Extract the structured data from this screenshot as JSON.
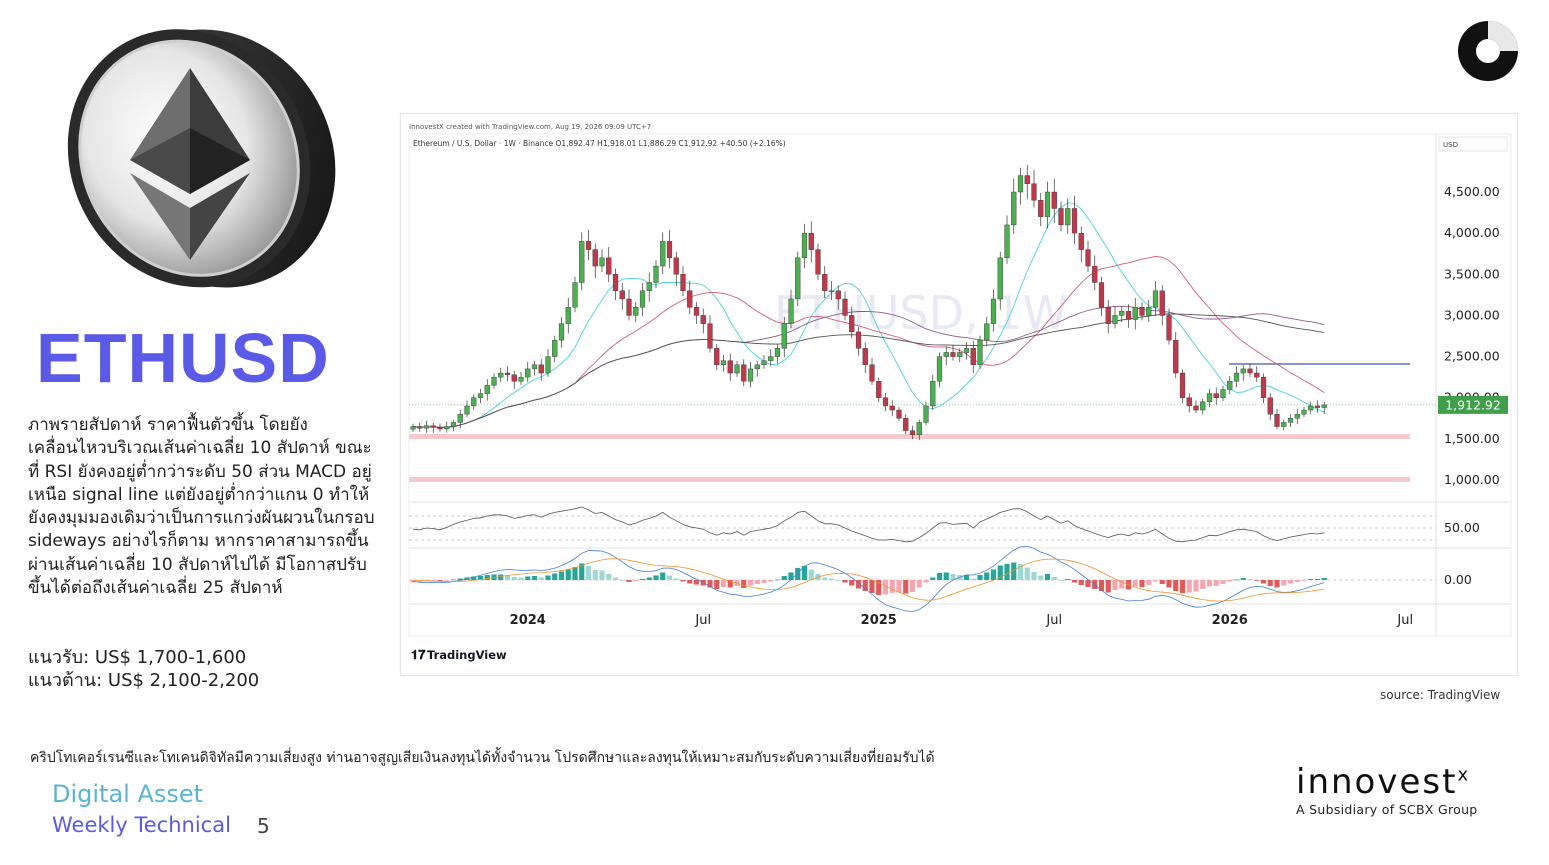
{
  "ticker": "ETHUSD",
  "analysis": "ภาพรายสัปดาห์ ราคาฟื้นตัวขึ้น โดยยังเคลื่อนไหวบริเวณเส้นค่าเฉลี่ย 10 สัปดาห์ ขณะที่ RSI ยังคงอยู่ต่ำกว่าระดับ 50 ส่วน MACD อยู่เหนือ signal line แต่ยังอยู่ต่ำกว่าแกน 0 ทำให้ยังคงมุมมองเดิมว่าเป็นการแกว่งผันผวนในกรอบ sideways อย่างไรก็ตาม หากราคาสามารถขึ้นผ่านเส้นค่าเฉลี่ย 10 สัปดาห์ไปได้ มีโอกาสปรับขึ้นได้ต่อถึงเส้นค่าเฉลี่ย 25 สัปดาห์",
  "support": "แนวรับ: US$ 1,700-1,600",
  "resistance": "แนวต้าน: US$ 2,100-2,200",
  "source": "source: TradingView",
  "disclaimer": "คริปโทเคอร์เรนซีและโทเคนดิจิทัลมีความเสี่ยงสูง ท่านอาจสูญเสียเงินลงทุนได้ทั้งจำนวน โปรดศึกษาและลงทุนให้เหมาะสมกับระดับความเสี่ยงที่ยอมรับได้",
  "footer": {
    "line1": "Digital Asset",
    "line2": "Weekly Technical",
    "page": "5"
  },
  "brand": {
    "name": "innovest",
    "mark": "x",
    "subtitle": "A Subsidiary of SCBX Group"
  },
  "colors": {
    "accent": "#5a5ae6",
    "teal": "#5ab4d6",
    "up": "#4caf50",
    "down": "#c0394b",
    "ma10": "#4dd0e1",
    "ma25": "#d45d79",
    "ma50": "#8e5a8a",
    "ma100": "#555555",
    "support_band": "#f7c9cf"
  },
  "chart_data": {
    "type": "candlestick",
    "header": "InnovestX created with TradingView.com, Aug 19, 2026 09:09 UTC+7",
    "symbol_line": "Ethereum / U.S. Dollar · 1W · Binance  O1,892.47  H1,918.01  L1,886.29  C1,912.92  +40.50 (+2.16%)",
    "watermark": "ETHUSD, 1W",
    "currency_label": "USD",
    "price_label": "1,912.92",
    "price_ticks": [
      "4,500.00",
      "4,000.00",
      "3,500.00",
      "3,000.00",
      "2,500.00",
      "1,500.00",
      "1,000.00"
    ],
    "partial_tick": "2,000.00",
    "rsi_tick": "50.00",
    "macd_tick": "0.00",
    "x_ticks": [
      {
        "label": "2024",
        "bold": true,
        "week": 17
      },
      {
        "label": "Jul",
        "bold": false,
        "week": 43
      },
      {
        "label": "2025",
        "bold": true,
        "week": 69
      },
      {
        "label": "Jul",
        "bold": false,
        "week": 95
      },
      {
        "label": "2026",
        "bold": true,
        "week": 121
      },
      {
        "label": "Jul",
        "bold": false,
        "week": 147
      }
    ],
    "branding": "TradingView",
    "closes": [
      1650,
      1630,
      1660,
      1640,
      1620,
      1650,
      1700,
      1800,
      1900,
      2000,
      2050,
      2150,
      2250,
      2300,
      2280,
      2200,
      2250,
      2350,
      2400,
      2300,
      2500,
      2700,
      2900,
      3100,
      3400,
      3900,
      3800,
      3600,
      3700,
      3500,
      3300,
      3200,
      3000,
      3100,
      3300,
      3400,
      3600,
      3900,
      3700,
      3500,
      3300,
      3100,
      3000,
      2900,
      2600,
      2400,
      2450,
      2300,
      2400,
      2200,
      2350,
      2400,
      2450,
      2500,
      2600,
      2900,
      3200,
      3700,
      4000,
      3800,
      3500,
      3300,
      3300,
      3200,
      3000,
      2800,
      2600,
      2400,
      2200,
      2000,
      1900,
      1850,
      1750,
      1600,
      1550,
      1700,
      1900,
      2200,
      2500,
      2550,
      2500,
      2550,
      2600,
      2400,
      2700,
      2900,
      3200,
      3700,
      4100,
      4500,
      4700,
      4600,
      4400,
      4200,
      4500,
      4300,
      4100,
      4300,
      4000,
      3800,
      3600,
      3400,
      3100,
      2900,
      3000,
      3050,
      2950,
      3100,
      3000,
      3100,
      3300,
      3000,
      2700,
      2300,
      2000,
      1900,
      1850,
      1950,
      2050,
      2000,
      2100,
      2200,
      2300,
      2350,
      2300,
      2250,
      2000,
      1800,
      1650,
      1700,
      1750,
      1800,
      1850,
      1900,
      1880,
      1913
    ],
    "rsi": [
      48,
      47,
      50,
      49,
      47,
      51,
      56,
      60,
      63,
      66,
      67,
      70,
      72,
      72,
      70,
      66,
      68,
      71,
      72,
      68,
      73,
      76,
      78,
      80,
      82,
      85,
      80,
      74,
      76,
      70,
      64,
      60,
      55,
      58,
      63,
      66,
      70,
      76,
      68,
      62,
      56,
      52,
      50,
      48,
      42,
      38,
      42,
      40,
      44,
      38,
      44,
      46,
      48,
      50,
      54,
      62,
      68,
      76,
      78,
      70,
      62,
      57,
      57,
      55,
      50,
      45,
      41,
      37,
      33,
      30,
      30,
      31,
      29,
      27,
      28,
      34,
      41,
      50,
      58,
      59,
      56,
      57,
      58,
      50,
      60,
      65,
      70,
      76,
      79,
      82,
      82,
      77,
      70,
      64,
      70,
      64,
      58,
      62,
      54,
      49,
      45,
      41,
      37,
      34,
      38,
      40,
      37,
      42,
      40,
      43,
      48,
      40,
      33,
      28,
      27,
      29,
      30,
      34,
      38,
      37,
      40,
      44,
      47,
      48,
      46,
      44,
      37,
      32,
      29,
      32,
      35,
      37,
      39,
      41,
      40,
      42
    ],
    "macd_hist": [
      -10,
      -8,
      -5,
      -3,
      -4,
      -2,
      2,
      6,
      10,
      14,
      16,
      20,
      22,
      22,
      18,
      12,
      10,
      14,
      16,
      10,
      18,
      26,
      34,
      42,
      52,
      66,
      56,
      40,
      38,
      24,
      10,
      0,
      -8,
      -4,
      4,
      10,
      18,
      30,
      18,
      6,
      -6,
      -14,
      -18,
      -22,
      -30,
      -36,
      -28,
      -30,
      -24,
      -32,
      -22,
      -16,
      -12,
      -6,
      2,
      16,
      30,
      48,
      56,
      42,
      24,
      10,
      6,
      0,
      -10,
      -22,
      -34,
      -44,
      -52,
      -60,
      -58,
      -52,
      -50,
      -54,
      -48,
      -30,
      -10,
      10,
      28,
      30,
      24,
      20,
      20,
      6,
      20,
      30,
      42,
      58,
      64,
      70,
      64,
      50,
      32,
      18,
      24,
      12,
      0,
      4,
      -10,
      -20,
      -28,
      -36,
      -44,
      -50,
      -40,
      -34,
      -38,
      -26,
      -28,
      -20,
      -6,
      -16,
      -30,
      -44,
      -52,
      -50,
      -46,
      -36,
      -26,
      -24,
      -16,
      -6,
      2,
      8,
      4,
      -2,
      -14,
      -24,
      -30,
      -22,
      -14,
      -8,
      -2,
      4,
      4,
      8
    ]
  }
}
